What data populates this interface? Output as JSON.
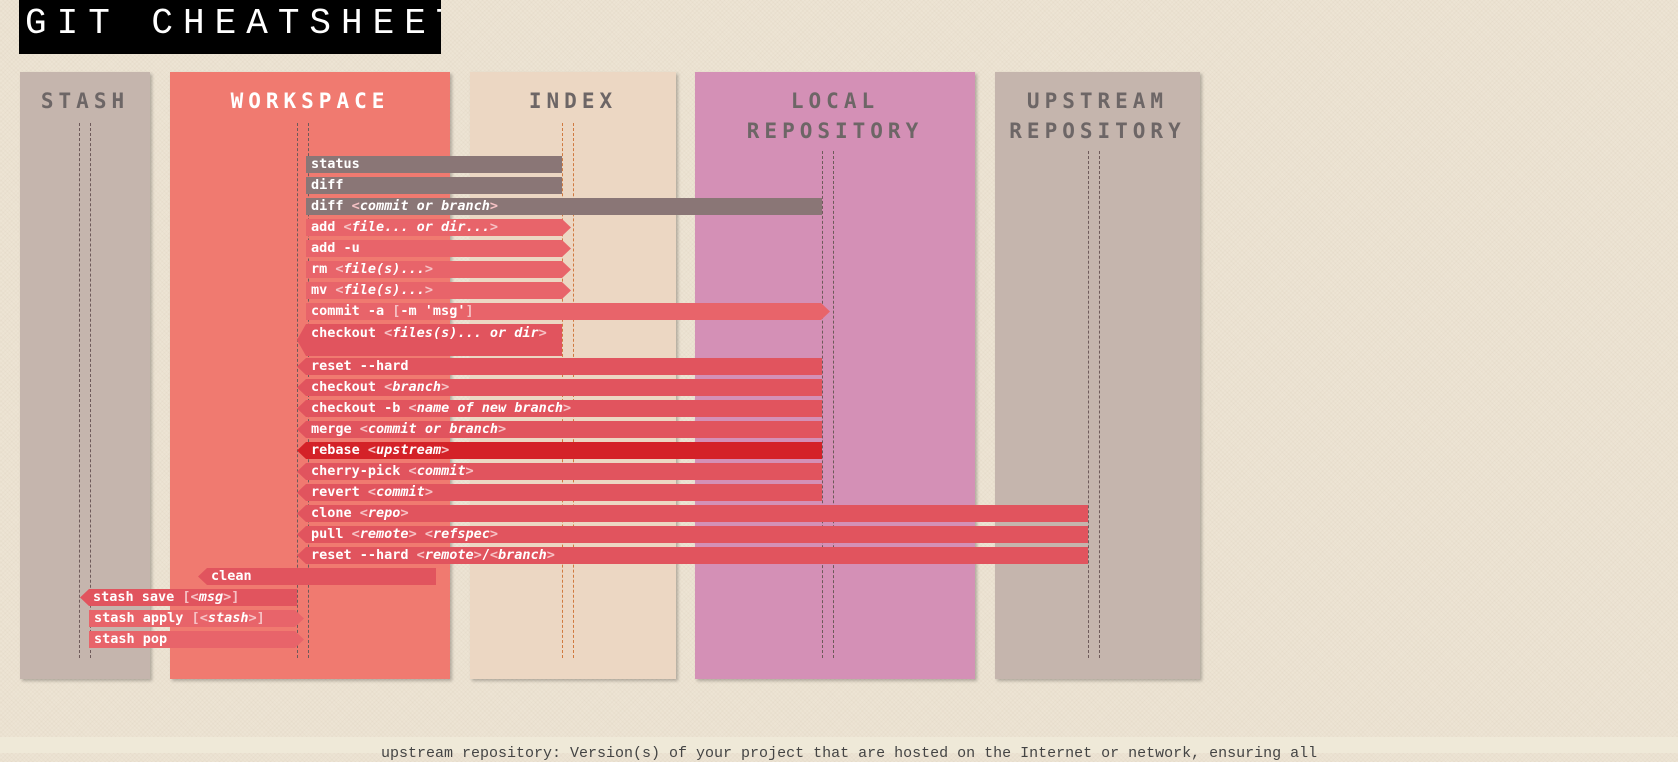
{
  "title": "GIT CHEATSHEET",
  "columns": {
    "stash": {
      "label": "STASH",
      "color": "#c5b5ad"
    },
    "workspace": {
      "label": "WORKSPACE",
      "color": "#f07a70"
    },
    "index": {
      "label": "INDEX",
      "color": "#ecd7c3"
    },
    "local": {
      "label": "LOCAL\nREPOSITORY",
      "color": "#d490b6"
    },
    "upstream": {
      "label": "UPSTREAM\nREPOSITORY",
      "color": "#c5b5ad"
    }
  },
  "commands": {
    "status": "status",
    "diff": "diff",
    "diff_commit": "diff <commit or branch>",
    "add": "add <file... or dir...>",
    "add_u": "add -u",
    "rm": "rm <file(s)...>",
    "mv": "mv <file(s)...>",
    "commit_a": "commit -a [-m 'msg']",
    "checkout_files": "checkout <files(s)... or dir>",
    "reset_hard": "reset --hard",
    "checkout_branch": "checkout <branch>",
    "checkout_b": "checkout -b <name of new branch>",
    "merge": "merge <commit or branch>",
    "rebase": "rebase <upstream>",
    "cherry_pick": "cherry-pick <commit>",
    "revert": "revert <commit>",
    "clone": "clone <repo>",
    "pull": "pull <remote> <refspec>",
    "reset_hard_remote": "reset --hard <remote>/<branch>",
    "clean": "clean",
    "stash_save": "stash save [<msg>]",
    "stash_apply": "stash apply [<stash>]",
    "stash_pop": "stash pop"
  },
  "footer_text": "upstream repository: Version(s) of your project that are hosted on the Internet or network, ensuring all"
}
